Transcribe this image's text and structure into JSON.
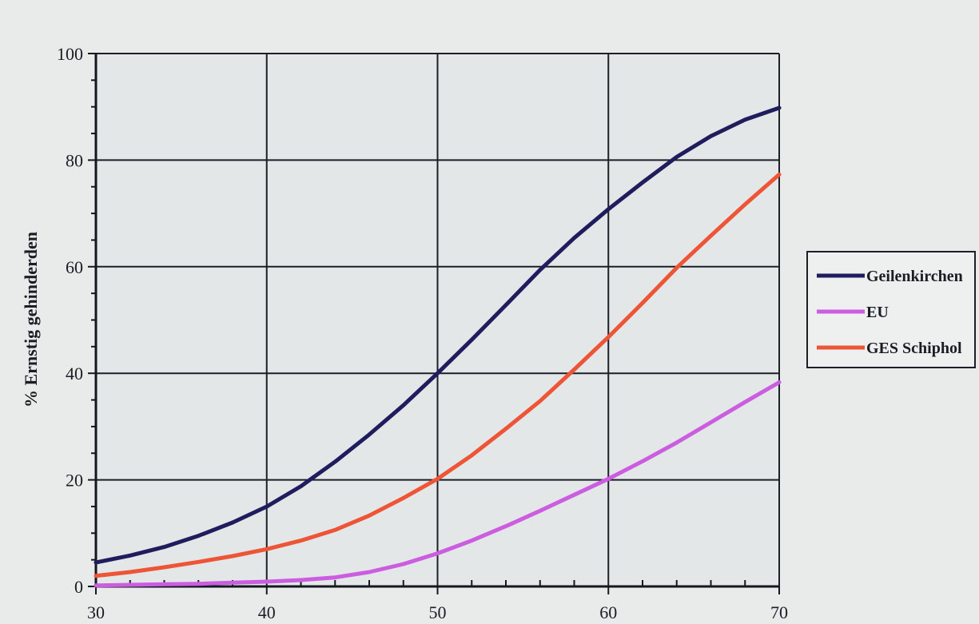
{
  "chart_data": {
    "type": "line",
    "title": "",
    "xlabel": "",
    "ylabel": "% Ernstig gehinderden",
    "xlim": [
      30,
      70
    ],
    "ylim": [
      0,
      100
    ],
    "x_ticks": [
      30,
      40,
      50,
      60,
      70
    ],
    "y_ticks": [
      0,
      20,
      40,
      60,
      80,
      100
    ],
    "grid": true,
    "legend_position": "right",
    "x": [
      30,
      32,
      34,
      36,
      38,
      40,
      42,
      44,
      46,
      48,
      50,
      52,
      54,
      56,
      58,
      60,
      62,
      64,
      66,
      68,
      70
    ],
    "series": [
      {
        "name": "Geilenkirchen",
        "color": "#1f1d5e",
        "values": [
          4.5,
          5.8,
          7.4,
          9.5,
          12,
          15,
          18.8,
          23.4,
          28.5,
          34,
          40,
          46.3,
          52.8,
          59.4,
          65.4,
          70.8,
          75.8,
          80.6,
          84.5,
          87.6,
          89.8
        ]
      },
      {
        "name": "EU",
        "color": "#cc5ce0",
        "values": [
          0.2,
          0.3,
          0.4,
          0.5,
          0.7,
          0.9,
          1.2,
          1.7,
          2.7,
          4.2,
          6.2,
          8.6,
          11.3,
          14.2,
          17.2,
          20.2,
          23.5,
          27,
          30.8,
          34.6,
          38.3
        ]
      },
      {
        "name": "GES Schiphol",
        "color": "#ee5436",
        "values": [
          2,
          2.7,
          3.6,
          4.6,
          5.7,
          7,
          8.6,
          10.6,
          13.3,
          16.6,
          20.2,
          24.6,
          29.6,
          34.8,
          40.7,
          46.8,
          53.2,
          59.8,
          65.8,
          71.7,
          77.3
        ]
      }
    ]
  }
}
